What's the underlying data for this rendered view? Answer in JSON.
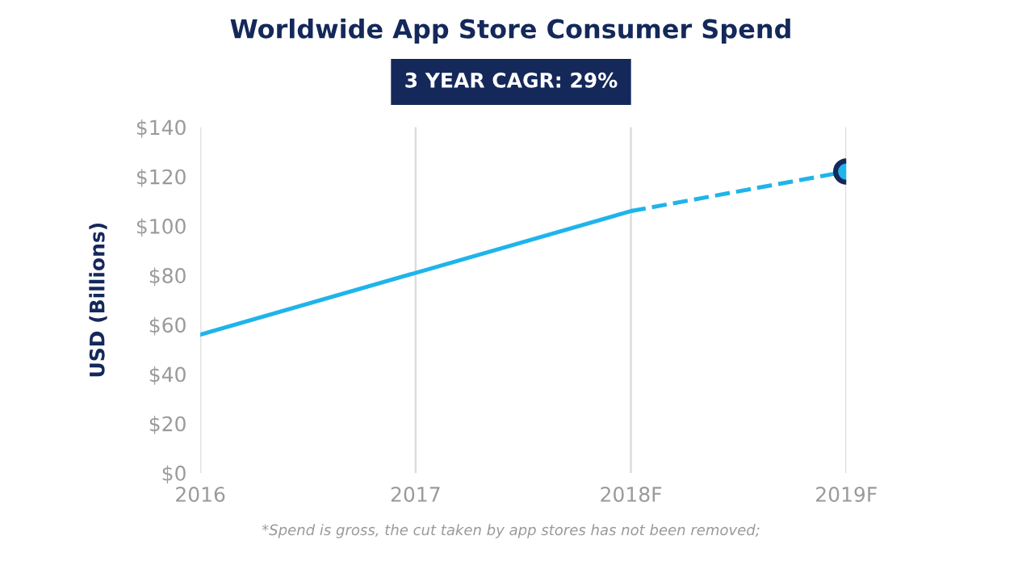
{
  "chart_data": {
    "type": "line",
    "title": "Worldwide App Store Consumer Spend",
    "ylabel": "USD (Billions)",
    "categories": [
      "2016",
      "2017",
      "2018F",
      "2019F"
    ],
    "series": [
      {
        "color": "#1fb4ea",
        "values": [
          56,
          81,
          106,
          null
        ],
        "line_style": "solid",
        "marker": "none"
      },
      {
        "color": "#1fb4ea",
        "values": [
          null,
          null,
          106,
          122
        ],
        "line_style": "dashed",
        "marker": "none"
      },
      {
        "type": "scatter",
        "color": "#1fb4ea",
        "values": [
          null,
          null,
          null,
          122
        ],
        "marker": "circle"
      }
    ],
    "ylim": [
      0,
      140
    ],
    "yticks": [
      {
        "value": 0,
        "label": "$0"
      },
      {
        "value": 20,
        "label": "$20"
      },
      {
        "value": 40,
        "label": "$40"
      },
      {
        "value": 60,
        "label": "$60"
      },
      {
        "value": 80,
        "label": "$80"
      },
      {
        "value": 100,
        "label": "$100"
      },
      {
        "value": 120,
        "label": "$120"
      },
      {
        "value": 140,
        "label": "$140"
      }
    ],
    "grid": "x",
    "legend": false,
    "annotations": [
      "3 YEAR CAGR: 29%",
      "*Spend is gross, the cut taken by app stores has not been removed;"
    ]
  }
}
